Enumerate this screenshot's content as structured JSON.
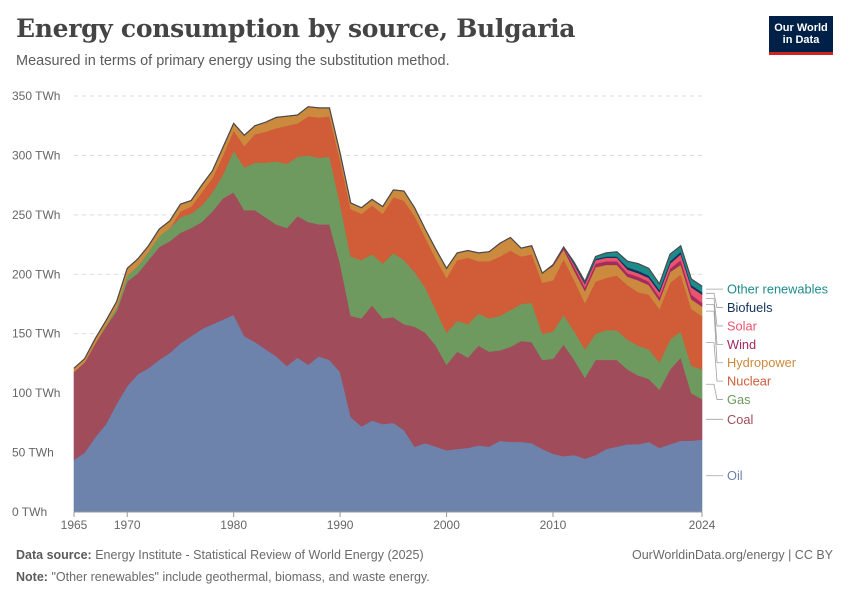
{
  "header": {
    "title": "Energy consumption by source, Bulgaria",
    "subtitle": "Measured in terms of primary energy using the substitution method.",
    "logo_line1": "Our World",
    "logo_line2": "in Data"
  },
  "footer": {
    "source_label": "Data source:",
    "source_text": "Energy Institute - Statistical Review of World Energy (2025)",
    "note_label": "Note:",
    "note_text": "\"Other renewables\" include geothermal, biomass, and waste energy.",
    "citation": "OurWorldinData.org/energy | CC BY"
  },
  "colors": {
    "Oil": "#6d83ac",
    "Coal": "#a14c5a",
    "Gas": "#6e9a5f",
    "Nuclear": "#d05d37",
    "Hydropower": "#cc8a3e",
    "Wind": "#a42a62",
    "Solar": "#e9546c",
    "Biofuels": "#11325c",
    "Other renewables": "#1d8b8b"
  },
  "chart_data": {
    "type": "area",
    "stacked": true,
    "title": "Energy consumption by source, Bulgaria",
    "xlabel": "",
    "ylabel": "",
    "unit": "TWh",
    "ylim": [
      0,
      350
    ],
    "xlim": [
      1965,
      2024
    ],
    "x_ticks": [
      "1965",
      "1970",
      "1980",
      "1990",
      "2000",
      "2010",
      "2024"
    ],
    "y_ticks": [
      "0 TWh",
      "50 TWh",
      "100 TWh",
      "150 TWh",
      "200 TWh",
      "250 TWh",
      "300 TWh",
      "350 TWh"
    ],
    "x": [
      1965,
      1966,
      1967,
      1968,
      1969,
      1970,
      1971,
      1972,
      1973,
      1974,
      1975,
      1976,
      1977,
      1978,
      1979,
      1980,
      1981,
      1982,
      1983,
      1984,
      1985,
      1986,
      1987,
      1988,
      1989,
      1990,
      1991,
      1992,
      1993,
      1994,
      1995,
      1996,
      1997,
      1998,
      1999,
      2000,
      2001,
      2002,
      2003,
      2004,
      2005,
      2006,
      2007,
      2008,
      2009,
      2010,
      2011,
      2012,
      2013,
      2014,
      2015,
      2016,
      2017,
      2018,
      2019,
      2020,
      2021,
      2022,
      2023,
      2024
    ],
    "series": [
      {
        "name": "Oil",
        "values": [
          44,
          50,
          63,
          74,
          91,
          106,
          116,
          121,
          128,
          134,
          142,
          148,
          154,
          158,
          162,
          166,
          148,
          143,
          137,
          131,
          123,
          130,
          124,
          131,
          128,
          118,
          80,
          72,
          77,
          74,
          75,
          69,
          55,
          58,
          55,
          52,
          53,
          54,
          56,
          55,
          60,
          59,
          59,
          58,
          53,
          49,
          47,
          48,
          45,
          48,
          53,
          55,
          57,
          57,
          59,
          54,
          57,
          60,
          60,
          61
        ]
      },
      {
        "name": "Coal",
        "values": [
          74,
          76,
          79,
          82,
          78,
          88,
          85,
          91,
          95,
          94,
          93,
          91,
          90,
          95,
          102,
          103,
          106,
          111,
          111,
          111,
          116,
          119,
          120,
          111,
          114,
          91,
          85,
          91,
          97,
          89,
          89,
          89,
          101,
          93,
          85,
          72,
          82,
          76,
          84,
          80,
          76,
          80,
          85,
          85,
          75,
          80,
          94,
          80,
          68,
          80,
          75,
          73,
          63,
          58,
          53,
          49,
          63,
          70,
          40,
          34
        ]
      },
      {
        "name": "Gas",
        "values": [
          0,
          0,
          0,
          1,
          3,
          5,
          6,
          7,
          9,
          11,
          13,
          12,
          14,
          16,
          20,
          35,
          36,
          40,
          46,
          53,
          54,
          50,
          56,
          56,
          57,
          50,
          50,
          49,
          43,
          46,
          54,
          54,
          46,
          38,
          30,
          27,
          26,
          28,
          27,
          28,
          29,
          31,
          31,
          33,
          22,
          23,
          25,
          24,
          24,
          22,
          25,
          25,
          25,
          25,
          25,
          23,
          25,
          22,
          23,
          25
        ]
      },
      {
        "name": "Nuclear",
        "values": [
          0,
          0,
          0,
          0,
          0,
          0,
          0,
          0,
          0,
          0,
          5,
          6,
          11,
          12,
          16,
          17,
          18,
          24,
          26,
          28,
          32,
          28,
          33,
          34,
          34,
          37,
          40,
          39,
          41,
          42,
          47,
          50,
          47,
          42,
          43,
          46,
          51,
          56,
          44,
          48,
          50,
          50,
          40,
          41,
          43,
          43,
          47,
          43,
          39,
          44,
          44,
          46,
          46,
          45,
          46,
          45,
          48,
          48,
          48,
          45
        ]
      },
      {
        "name": "Hydropower",
        "values": [
          3,
          3,
          4,
          4,
          5,
          6,
          6,
          5,
          6,
          6,
          6,
          5,
          6,
          6,
          7,
          6,
          9,
          7,
          8,
          9,
          8,
          7,
          8,
          8,
          7,
          6,
          5,
          5,
          5,
          6,
          6,
          8,
          7,
          7,
          8,
          8,
          6,
          6,
          7,
          8,
          11,
          11,
          7,
          7,
          8,
          12,
          8,
          8,
          10,
          12,
          11,
          9,
          7,
          10,
          8,
          7,
          9,
          8,
          8,
          8
        ]
      },
      {
        "name": "Wind",
        "values": [
          0,
          0,
          0,
          0,
          0,
          0,
          0,
          0,
          0,
          0,
          0,
          0,
          0,
          0,
          0,
          0,
          0,
          0,
          0,
          0,
          0,
          0,
          0,
          0,
          0,
          0,
          0,
          0,
          0,
          0,
          0,
          0,
          0,
          0,
          0,
          0,
          0,
          0,
          0,
          0,
          0,
          0,
          0,
          0,
          0,
          1,
          2,
          3,
          3,
          3,
          3,
          3,
          3,
          3,
          3,
          3,
          3,
          4,
          4,
          3
        ]
      },
      {
        "name": "Solar",
        "values": [
          0,
          0,
          0,
          0,
          0,
          0,
          0,
          0,
          0,
          0,
          0,
          0,
          0,
          0,
          0,
          0,
          0,
          0,
          0,
          0,
          0,
          0,
          0,
          0,
          0,
          0,
          0,
          0,
          0,
          0,
          0,
          0,
          0,
          0,
          0,
          0,
          0,
          0,
          0,
          0,
          0,
          0,
          0,
          0,
          0,
          0,
          0,
          2,
          3,
          3,
          3,
          3,
          3,
          3,
          3,
          4,
          4,
          5,
          6,
          7
        ]
      },
      {
        "name": "Biofuels",
        "values": [
          0,
          0,
          0,
          0,
          0,
          0,
          0,
          0,
          0,
          0,
          0,
          0,
          0,
          0,
          0,
          0,
          0,
          0,
          0,
          0,
          0,
          0,
          0,
          0,
          0,
          0,
          0,
          0,
          0,
          0,
          0,
          0,
          0,
          0,
          0,
          0,
          0,
          0,
          0,
          0,
          0,
          0,
          0,
          0,
          0,
          0,
          0,
          1,
          1,
          1,
          1,
          1,
          2,
          2,
          2,
          2,
          2,
          2,
          2,
          2
        ]
      },
      {
        "name": "Other renewables",
        "values": [
          0,
          0,
          0,
          0,
          0,
          0,
          0,
          0,
          0,
          0,
          0,
          0,
          0,
          0,
          0,
          0,
          0,
          0,
          0,
          0,
          0,
          0,
          0,
          0,
          0,
          0,
          0,
          0,
          0,
          0,
          0,
          0,
          0,
          0,
          0,
          0,
          0,
          0,
          0,
          0,
          0,
          0,
          0,
          0,
          0,
          0,
          0,
          1,
          1,
          2,
          3,
          4,
          5,
          6,
          6,
          5,
          6,
          5,
          5,
          5
        ]
      }
    ],
    "legend": [
      {
        "name": "Other renewables",
        "label": "Other renewables"
      },
      {
        "name": "Biofuels",
        "label": "Biofuels"
      },
      {
        "name": "Solar",
        "label": "Solar"
      },
      {
        "name": "Wind",
        "label": "Wind"
      },
      {
        "name": "Hydropower",
        "label": "Hydropower"
      },
      {
        "name": "Nuclear",
        "label": "Nuclear"
      },
      {
        "name": "Gas",
        "label": "Gas"
      },
      {
        "name": "Coal",
        "label": "Coal"
      },
      {
        "name": "Oil",
        "label": "Oil"
      }
    ],
    "legend_placement": "right"
  }
}
